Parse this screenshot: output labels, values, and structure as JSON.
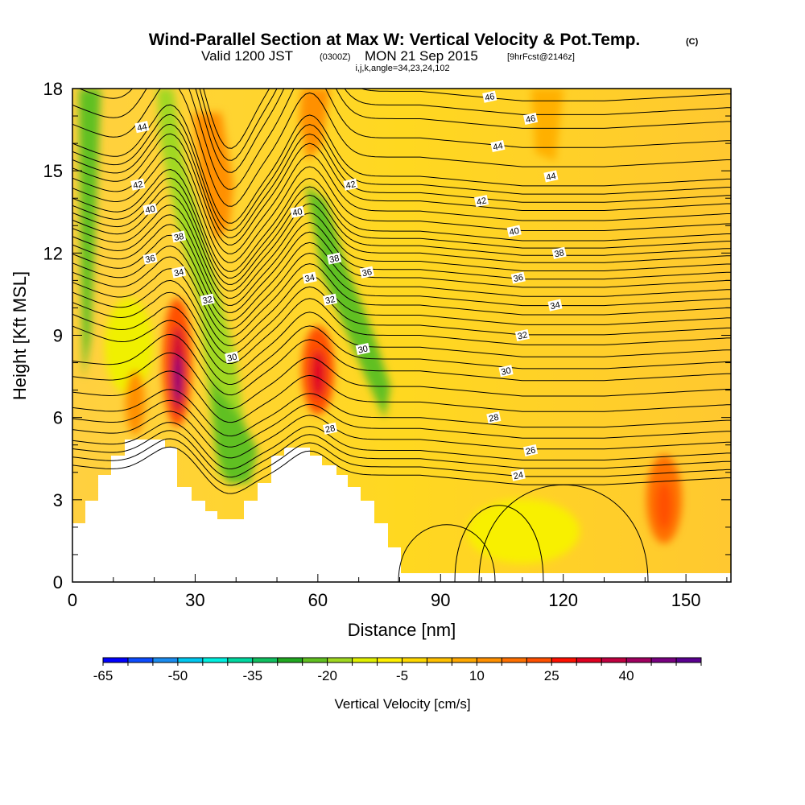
{
  "chart_data": {
    "type": "heatmap",
    "title": "Wind-Parallel Section at Max W: Vertical Velocity & Pot.Temp.",
    "title_mark": "(C)",
    "subtitle_a": "Valid 1200 JST",
    "subtitle_b": "(0300Z)",
    "subtitle_c": "MON 21 Sep 2015",
    "subtitle_d": "[9hrFcst@2146z]",
    "subtitle2": "i,j,k,angle=34,23,24,102",
    "xlabel": "Distance [nm]",
    "ylabel": "Height [Kft MSL]",
    "xlim": [
      0,
      161
    ],
    "ylim": [
      0,
      18
    ],
    "x_ticks": [
      "0",
      "30",
      "60",
      "90",
      "120",
      "150"
    ],
    "y_ticks": [
      "0",
      "3",
      "6",
      "9",
      "12",
      "15",
      "18"
    ],
    "grid": false,
    "colorbar": {
      "label": "Vertical Velocity [cm/s]",
      "tick_labels": [
        "-65",
        "-50",
        "-35",
        "-20",
        "-5",
        "10",
        "25",
        "40"
      ],
      "colors": [
        "#0000ff",
        "#0c4cff",
        "#1a8cf0",
        "#00c8f0",
        "#00f0e0",
        "#00d8a0",
        "#10c060",
        "#20a820",
        "#60c020",
        "#a0d820",
        "#e0f000",
        "#fff000",
        "#ffd800",
        "#ffc000",
        "#ffa800",
        "#ff9000",
        "#ff7000",
        "#ff5000",
        "#ff1000",
        "#e00020",
        "#c00040",
        "#a00060",
        "#780080",
        "#5a0090"
      ]
    },
    "theta_contours": {
      "unit": "pot. temp. labels",
      "levels": [
        24,
        26,
        28,
        30,
        32,
        34,
        36,
        38,
        40,
        42,
        44,
        46
      ],
      "labels": [
        {
          "text": "46",
          "x": 102,
          "y": 17.7
        },
        {
          "text": "46",
          "x": 112,
          "y": 16.9
        },
        {
          "text": "44",
          "x": 17,
          "y": 16.6
        },
        {
          "text": "44",
          "x": 104,
          "y": 15.9
        },
        {
          "text": "44",
          "x": 117,
          "y": 14.8
        },
        {
          "text": "42",
          "x": 16,
          "y": 14.5
        },
        {
          "text": "42",
          "x": 68,
          "y": 14.5
        },
        {
          "text": "42",
          "x": 100,
          "y": 13.9
        },
        {
          "text": "40",
          "x": 19,
          "y": 13.6
        },
        {
          "text": "40",
          "x": 55,
          "y": 13.5
        },
        {
          "text": "40",
          "x": 108,
          "y": 12.8
        },
        {
          "text": "38",
          "x": 26,
          "y": 12.6
        },
        {
          "text": "38",
          "x": 64,
          "y": 11.8
        },
        {
          "text": "38",
          "x": 119,
          "y": 12.0
        },
        {
          "text": "36",
          "x": 19,
          "y": 11.8
        },
        {
          "text": "36",
          "x": 72,
          "y": 11.3
        },
        {
          "text": "36",
          "x": 109,
          "y": 11.1
        },
        {
          "text": "34",
          "x": 26,
          "y": 11.3
        },
        {
          "text": "34",
          "x": 58,
          "y": 11.1
        },
        {
          "text": "34",
          "x": 118,
          "y": 10.1
        },
        {
          "text": "32",
          "x": 33,
          "y": 10.3
        },
        {
          "text": "32",
          "x": 63,
          "y": 10.3
        },
        {
          "text": "32",
          "x": 110,
          "y": 9.0
        },
        {
          "text": "30",
          "x": 39,
          "y": 8.2
        },
        {
          "text": "30",
          "x": 71,
          "y": 8.5
        },
        {
          "text": "30",
          "x": 106,
          "y": 7.7
        },
        {
          "text": "28",
          "x": 63,
          "y": 5.6
        },
        {
          "text": "28",
          "x": 103,
          "y": 6.0
        },
        {
          "text": "26",
          "x": 112,
          "y": 4.8
        },
        {
          "text": "24",
          "x": 109,
          "y": 3.9
        }
      ]
    },
    "updraft_maxima": [
      {
        "x": 26,
        "y": 8.5,
        "value": 40
      },
      {
        "x": 60,
        "y": 7.6,
        "value": 25
      },
      {
        "x": 145,
        "y": 3.0,
        "value": 15
      }
    ],
    "downdraft_minima": [
      {
        "x": 4,
        "y": 14.5,
        "value": -20
      },
      {
        "x": 40,
        "y": 4.7,
        "value": -20
      },
      {
        "x": 63,
        "y": 11.3,
        "value": -20
      }
    ]
  },
  "colors": {
    "background": "#ffffc0",
    "terrain": "#ffffff",
    "contour": "#000000"
  }
}
